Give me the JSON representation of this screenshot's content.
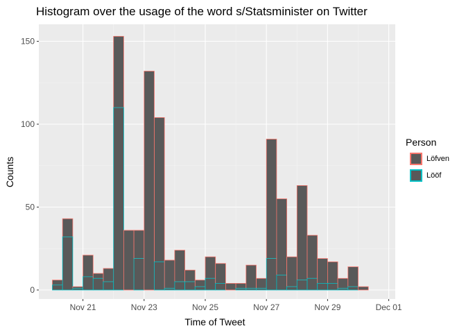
{
  "chart_data": {
    "type": "bar",
    "title": "Histogram over the usage of the word s/Statsminister on Twitter",
    "xlabel": "Time of Tweet",
    "ylabel": "Counts",
    "x_tick_labels": [
      "Nov 21",
      "Nov 23",
      "Nov 25",
      "Nov 27",
      "Nov 29",
      "Dec 01"
    ],
    "y_tick_labels": [
      "0",
      "50",
      "100",
      "150"
    ],
    "ylim": [
      0,
      165
    ],
    "legend": {
      "title": "Person",
      "position": "right"
    },
    "grid": true,
    "bin_start_date": "2019-11-20",
    "bins_per_day": 3,
    "series": [
      {
        "name": "Löfven",
        "color": "#F8766D",
        "values": [
          3,
          11,
          1,
          13,
          3,
          8,
          43,
          36,
          17,
          132,
          87,
          17,
          19,
          7,
          4,
          13,
          12,
          4,
          3,
          14,
          6,
          72,
          46,
          18,
          57,
          26,
          15,
          13,
          6,
          12,
          2
        ]
      },
      {
        "name": "Lööf",
        "color": "#00BFC4",
        "values": [
          3,
          32,
          1,
          8,
          7,
          5,
          110,
          0,
          19,
          0,
          17,
          1,
          5,
          5,
          2,
          7,
          4,
          0,
          1,
          1,
          1,
          19,
          9,
          2,
          6,
          7,
          4,
          4,
          1,
          2,
          0
        ]
      }
    ]
  }
}
